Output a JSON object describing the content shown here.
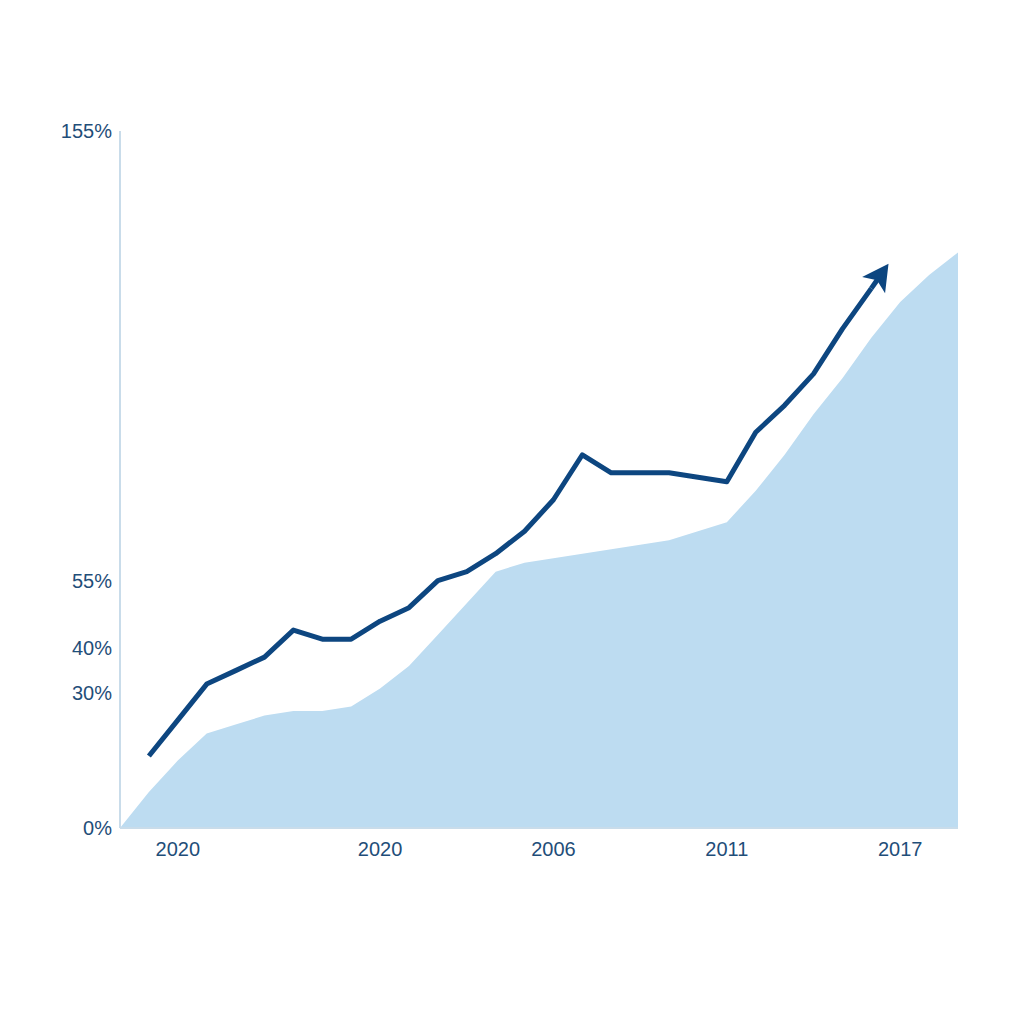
{
  "chart_data": {
    "type": "line",
    "categories": [
      null,
      null,
      "2020",
      null,
      null,
      null,
      null,
      null,
      null,
      "2020",
      null,
      null,
      null,
      null,
      null,
      "2006",
      null,
      null,
      null,
      null,
      null,
      "2011",
      null,
      null,
      null,
      null,
      null,
      "2017",
      null,
      null
    ],
    "series": [
      {
        "type": "area",
        "color": "#bddcf1",
        "values": [
          0,
          8,
          15,
          21,
          23,
          25,
          26,
          26,
          27,
          31,
          36,
          43,
          50,
          57,
          59,
          60,
          61,
          62,
          63,
          64,
          66,
          68,
          75,
          83,
          92,
          100,
          109,
          117,
          123,
          128
        ]
      },
      {
        "type": "line",
        "color": "#0d4680",
        "marker": "arrow",
        "values": [
          null,
          16,
          24,
          32,
          35,
          38,
          44,
          42,
          42,
          46,
          49,
          55,
          57,
          61,
          66,
          73,
          83,
          79,
          79,
          79,
          78,
          77,
          88,
          94,
          101,
          111,
          120,
          null,
          null,
          null
        ]
      }
    ],
    "ylim": [
      0,
      155
    ],
    "yticks": [
      {
        "value": 0,
        "label": "0%"
      },
      {
        "value": 30,
        "label": "30%"
      },
      {
        "value": 40,
        "label": "40%"
      },
      {
        "value": 55,
        "label": "55%"
      },
      {
        "value": 155,
        "label": "155%"
      }
    ],
    "grid": false
  }
}
